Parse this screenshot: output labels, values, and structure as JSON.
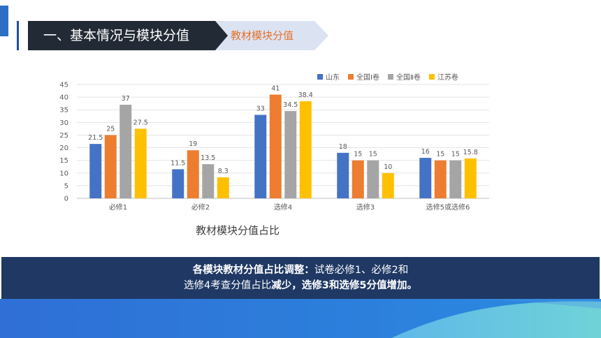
{
  "header": {
    "title": "一、基本情况与模块分值",
    "subtitle": "教材模块分值"
  },
  "chart_data": {
    "type": "bar",
    "title": "教材模块分值占比",
    "categories": [
      "必修1",
      "必修2",
      "选修4",
      "选修3",
      "选修5或选修6"
    ],
    "series": [
      {
        "name": "山东",
        "color": "#4472c4",
        "values": [
          21.5,
          11.5,
          33,
          18,
          16
        ]
      },
      {
        "name": "全国Ⅰ卷",
        "color": "#ed7d31",
        "values": [
          25,
          19,
          41,
          15,
          15
        ]
      },
      {
        "name": "全国Ⅱ卷",
        "color": "#a5a5a5",
        "values": [
          37,
          13.5,
          34.5,
          15,
          15
        ]
      },
      {
        "name": "江苏卷",
        "color": "#ffc000",
        "values": [
          27.5,
          8.3,
          38.4,
          10,
          15.8
        ]
      }
    ],
    "yticks": [
      0,
      5,
      10,
      15,
      20,
      25,
      30,
      35,
      40,
      45
    ],
    "ylim": [
      0,
      45
    ],
    "grid": true,
    "legend": "top-right",
    "data_labels": true
  },
  "summary": {
    "bold1": "各模块教材分值占比调整：",
    "normal1": "试卷必修1、必修2和",
    "normal2": "选修4考查分值占比",
    "bold2": "减少，选修3和选修5分值增加。"
  }
}
